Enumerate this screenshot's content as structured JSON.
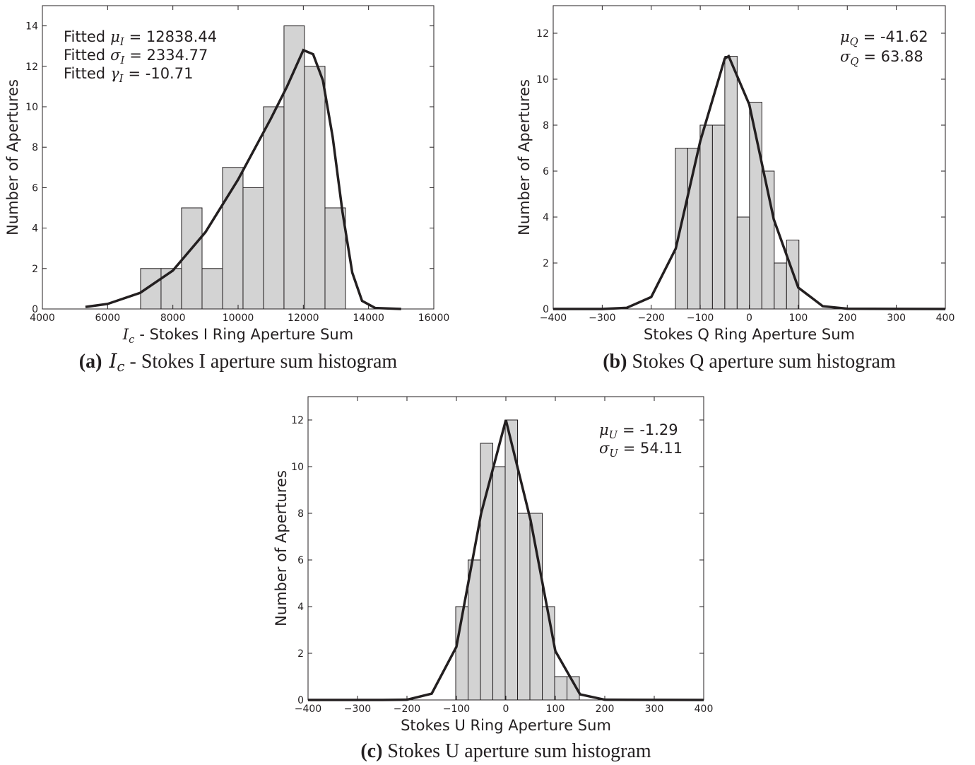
{
  "chart_data": [
    {
      "type": "histogram",
      "bins": [
        7010,
        7638,
        8266,
        8895,
        9523,
        10151,
        10779,
        11407,
        12035,
        12664,
        13292
      ],
      "counts": [
        2,
        2,
        5,
        2,
        7,
        6,
        10,
        14,
        12,
        5
      ],
      "color": "#d3d3d3",
      "curve": {
        "x": [
          5320,
          6000,
          7000,
          8000,
          9000,
          10000,
          11000,
          11500,
          12000,
          12300,
          12600,
          12900,
          13200,
          13500,
          13800,
          14200,
          15000
        ],
        "values": [
          0.1,
          0.25,
          0.8,
          1.9,
          3.8,
          6.4,
          9.4,
          11.0,
          12.8,
          12.6,
          11.3,
          8.5,
          4.8,
          1.8,
          0.4,
          0.05,
          0
        ],
        "color": "#231f20"
      },
      "xlim": [
        4000,
        16000
      ],
      "xticks": [
        4000,
        6000,
        8000,
        10000,
        12000,
        14000,
        16000
      ],
      "ylim": [
        0,
        15
      ],
      "yticks": [
        0,
        2,
        4,
        6,
        8,
        10,
        12,
        14
      ],
      "ylabel": "Number of Apertures",
      "xlabel": {
        "symbol": "I",
        "sub": "c",
        "text": "- Stokes I Ring Aperture Sum"
      },
      "annotations": [
        {
          "prefix": "Fitted",
          "symbol": "μ",
          "sub": "I",
          "text": "= 12838.44"
        },
        {
          "prefix": "Fitted",
          "symbol": "σ",
          "sub": "I",
          "text": "= 2334.77"
        },
        {
          "prefix": "Fitted",
          "symbol": "γ",
          "sub": "I",
          "text": "= -10.71"
        }
      ],
      "caption": {
        "tag": "(a)",
        "symbol": "I",
        "sub": "c",
        "text": "- Stokes I aperture sum histogram"
      }
    },
    {
      "type": "histogram",
      "bins": [
        -150.7,
        -125.5,
        -100.3,
        -75.1,
        -49.9,
        -24.7,
        0.5,
        25.7,
        50.9,
        76.1,
        101.3
      ],
      "counts": [
        7,
        7,
        8,
        8,
        11,
        4,
        9,
        6,
        2,
        3
      ],
      "color": "#d3d3d3",
      "curve": {
        "x": [
          -400,
          -300,
          -250,
          -200,
          -150,
          -100,
          -50,
          -42,
          0,
          50,
          100,
          150,
          200,
          400
        ],
        "values": [
          0,
          0,
          0.05,
          0.52,
          2.63,
          7.3,
          10.9,
          11,
          8.9,
          3.9,
          0.93,
          0.12,
          0.01,
          0
        ],
        "color": "#231f20"
      },
      "xlim": [
        -400,
        400
      ],
      "xticks": [
        {
          "value": -400,
          "label": "−400"
        },
        {
          "value": -300,
          "label": "−300"
        },
        {
          "value": -200,
          "label": "−200"
        },
        {
          "value": -100,
          "label": "−100"
        },
        0,
        100,
        200,
        300,
        400
      ],
      "ylim": [
        0,
        13.2
      ],
      "yticks": [
        0,
        2,
        4,
        6,
        8,
        10,
        12
      ],
      "ylabel": "Number of Apertures",
      "xlabel": {
        "text": "Stokes Q Ring Aperture Sum"
      },
      "annotations": [
        {
          "symbol": "μ",
          "sub": "Q",
          "text": "= -41.62"
        },
        {
          "symbol": "σ",
          "sub": "Q",
          "text": "= 63.88"
        }
      ],
      "caption": {
        "tag": "(b)",
        "text": "Stokes Q aperture sum histogram"
      }
    },
    {
      "type": "histogram",
      "bins": [
        -101.4,
        -76.4,
        -51.4,
        -26.4,
        -1.4,
        23.6,
        48.6,
        73.6,
        98.6,
        123.6,
        148.6
      ],
      "counts": [
        4,
        6,
        11,
        10,
        12,
        8,
        8,
        4,
        1,
        1
      ],
      "color": "#d3d3d3",
      "curve": {
        "x": [
          -400,
          -250,
          -200,
          -150,
          -100,
          -50,
          0,
          50,
          100,
          150,
          200,
          400
        ],
        "values": [
          0,
          0,
          0.01,
          0.27,
          2.28,
          8.0,
          12,
          7.7,
          2.1,
          0.24,
          0.01,
          0
        ],
        "color": "#231f20"
      },
      "xlim": [
        -400,
        400
      ],
      "xticks": [
        {
          "value": -400,
          "label": "−400"
        },
        {
          "value": -300,
          "label": "−300"
        },
        {
          "value": -200,
          "label": "−200"
        },
        {
          "value": -100,
          "label": "−100"
        },
        0,
        100,
        200,
        300,
        400
      ],
      "ylim": [
        0,
        13
      ],
      "yticks": [
        0,
        2,
        4,
        6,
        8,
        10,
        12
      ],
      "ylabel": "Number of Apertures",
      "xlabel": {
        "text": "Stokes U Ring Aperture Sum"
      },
      "annotations": [
        {
          "symbol": "μ",
          "sub": "U",
          "text": "= -1.29"
        },
        {
          "symbol": "σ",
          "sub": "U",
          "text": "= 54.11"
        }
      ],
      "caption": {
        "tag": "(c)",
        "text": "Stokes U aperture sum histogram"
      }
    }
  ]
}
